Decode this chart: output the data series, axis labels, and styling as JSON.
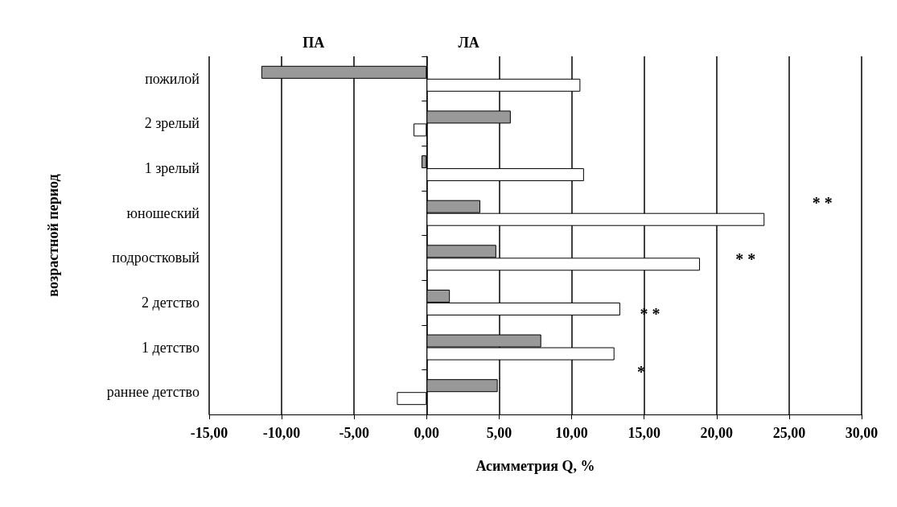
{
  "chart_data": {
    "type": "bar",
    "orientation": "horizontal",
    "xlabel": "Асимметрия Q, %",
    "ylabel": "возрастной период",
    "categories": [
      "пожилой",
      "2 зрелый",
      "1 зрелый",
      "юношеский",
      "подростковый",
      "2 детство",
      "1 детство",
      "раннее детство"
    ],
    "series": [
      {
        "color": "#999999",
        "values": [
          -11.4,
          5.8,
          -0.35,
          3.7,
          4.8,
          1.6,
          7.9,
          4.9
        ]
      },
      {
        "color": "#ffffff",
        "values": [
          10.6,
          -0.9,
          10.85,
          23.3,
          18.85,
          13.35,
          12.95,
          -2.05
        ]
      }
    ],
    "xlim": [
      -15,
      30
    ],
    "xticks": [
      {
        "value": -15,
        "label": "-15,00"
      },
      {
        "value": -10,
        "label": "-10,00"
      },
      {
        "value": -5,
        "label": "-5,00"
      },
      {
        "value": 0,
        "label": "0,00"
      },
      {
        "value": 5,
        "label": "5,00"
      },
      {
        "value": 10,
        "label": "10,00"
      },
      {
        "value": 15,
        "label": "15,00"
      },
      {
        "value": 20,
        "label": "20,00"
      },
      {
        "value": 25,
        "label": "25,00"
      },
      {
        "value": 30,
        "label": "30,00"
      }
    ],
    "grid": "x",
    "annotations": [
      "ПА",
      "ЛА",
      "* *",
      "* *",
      "* *",
      "*"
    ]
  }
}
